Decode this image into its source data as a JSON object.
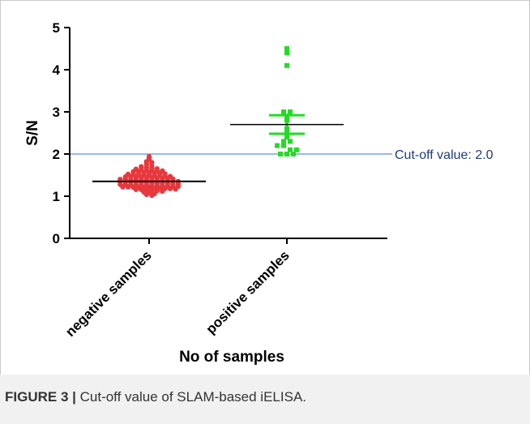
{
  "figure": {
    "caption_label": "FIGURE 3 |",
    "caption_text": " Cut-off value of SLAM-based iELISA."
  },
  "colors": {
    "negative": "#e8383d",
    "positive": "#22dd22",
    "cutoff_line": "#5b8fd4",
    "cutoff_text": "#1f3c7a",
    "axis": "#000000",
    "caption_background": "#f1f1f1"
  },
  "chart_data": {
    "type": "scatter",
    "title": "",
    "xlabel": "No of samples",
    "ylabel": "S/N",
    "ylim": [
      0,
      5
    ],
    "yticks": [
      0,
      1,
      2,
      3,
      4,
      5
    ],
    "categories": [
      "negative samples",
      "positive samples"
    ],
    "series": [
      {
        "name": "negative samples",
        "marker": "circle",
        "mean": 1.35,
        "values": [
          1.94,
          1.88,
          1.82,
          1.8,
          1.76,
          1.72,
          1.7,
          1.68,
          1.66,
          1.65,
          1.64,
          1.63,
          1.62,
          1.61,
          1.6,
          1.6,
          1.58,
          1.57,
          1.56,
          1.55,
          1.55,
          1.54,
          1.53,
          1.52,
          1.52,
          1.51,
          1.5,
          1.5,
          1.49,
          1.48,
          1.48,
          1.47,
          1.46,
          1.46,
          1.45,
          1.45,
          1.44,
          1.43,
          1.43,
          1.42,
          1.42,
          1.41,
          1.4,
          1.4,
          1.39,
          1.39,
          1.38,
          1.38,
          1.37,
          1.37,
          1.36,
          1.36,
          1.35,
          1.35,
          1.34,
          1.34,
          1.33,
          1.33,
          1.32,
          1.32,
          1.31,
          1.31,
          1.3,
          1.3,
          1.29,
          1.29,
          1.28,
          1.28,
          1.27,
          1.27,
          1.26,
          1.26,
          1.25,
          1.25,
          1.24,
          1.24,
          1.23,
          1.23,
          1.22,
          1.22,
          1.21,
          1.21,
          1.2,
          1.2,
          1.19,
          1.19,
          1.18,
          1.18,
          1.17,
          1.16,
          1.16,
          1.15,
          1.14,
          1.13,
          1.12,
          1.1,
          1.08,
          1.06,
          1.04,
          1.02
        ]
      },
      {
        "name": "positive samples",
        "marker": "square",
        "mean": 2.7,
        "sem_upper": 2.92,
        "sem_lower": 2.48,
        "values": [
          4.5,
          4.4,
          4.1,
          3.0,
          3.0,
          2.9,
          2.8,
          2.6,
          2.5,
          2.4,
          2.3,
          2.3,
          2.2,
          2.2,
          2.1,
          2.1,
          2.0,
          2.0,
          2.0
        ]
      }
    ],
    "reference_line": {
      "value": 2.0,
      "label": "Cut-off value: 2.0"
    }
  }
}
